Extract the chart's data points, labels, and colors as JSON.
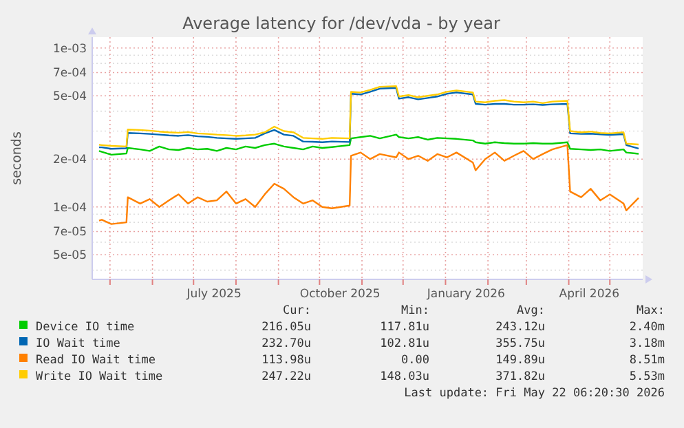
{
  "chart_data": {
    "type": "line",
    "title": "Average latency for /dev/vda - by year",
    "ylabel": "seconds",
    "log": true,
    "grid": true,
    "legend": "bottom",
    "xlim": [
      "2025-04-18",
      "2026-05-25"
    ],
    "xticks": [
      {
        "value": "2025-05-01",
        "label": null
      },
      {
        "value": "2025-06-01",
        "label": null
      },
      {
        "value": "2025-07-01",
        "label": null
      },
      {
        "value": "2025-07-16",
        "label": "July 2025"
      },
      {
        "value": "2025-08-01",
        "label": null
      },
      {
        "value": "2025-09-01",
        "label": null
      },
      {
        "value": "2025-10-01",
        "label": null
      },
      {
        "value": "2025-10-16",
        "label": "October 2025"
      },
      {
        "value": "2025-11-01",
        "label": null
      },
      {
        "value": "2025-12-01",
        "label": null
      },
      {
        "value": "2026-01-01",
        "label": null
      },
      {
        "value": "2026-01-16",
        "label": "January 2026"
      },
      {
        "value": "2026-02-01",
        "label": null
      },
      {
        "value": "2026-03-01",
        "label": null
      },
      {
        "value": "2026-04-01",
        "label": null
      },
      {
        "value": "2026-04-16",
        "label": "April 2026"
      },
      {
        "value": "2026-05-01",
        "label": null
      }
    ],
    "ylim": [
      3.5e-05,
      0.00117
    ],
    "yticks": [
      {
        "value": 4e-05,
        "label": null
      },
      {
        "value": 5e-05,
        "label": "5e-05"
      },
      {
        "value": 6e-05,
        "label": null
      },
      {
        "value": 7e-05,
        "label": "7e-05"
      },
      {
        "value": 8e-05,
        "label": null
      },
      {
        "value": 9e-05,
        "label": null
      },
      {
        "value": 0.0001,
        "label": "1e-04"
      },
      {
        "value": 0.0002,
        "label": "2e-04"
      },
      {
        "value": 0.0003,
        "label": null
      },
      {
        "value": 0.0004,
        "label": null
      },
      {
        "value": 0.0005,
        "label": "5e-04"
      },
      {
        "value": 0.0006,
        "label": null
      },
      {
        "value": 0.0007,
        "label": "7e-04"
      },
      {
        "value": 0.0008,
        "label": null
      },
      {
        "value": 0.0009,
        "label": null
      },
      {
        "value": 0.001,
        "label": "1e-03"
      }
    ],
    "x": [
      "2025-04-23",
      "2025-04-25",
      "2025-05-02",
      "2025-05-13",
      "2025-05-14",
      "2025-05-23",
      "2025-05-30",
      "2025-06-06",
      "2025-06-13",
      "2025-06-20",
      "2025-06-27",
      "2025-07-04",
      "2025-07-11",
      "2025-07-18",
      "2025-07-25",
      "2025-08-01",
      "2025-08-08",
      "2025-08-15",
      "2025-08-22",
      "2025-08-29",
      "2025-09-05",
      "2025-09-12",
      "2025-09-19",
      "2025-09-26",
      "2025-10-03",
      "2025-10-10",
      "2025-10-23",
      "2025-10-24",
      "2025-10-31",
      "2025-11-07",
      "2025-11-14",
      "2025-11-26",
      "2025-11-28",
      "2025-12-05",
      "2025-12-12",
      "2025-12-19",
      "2025-12-26",
      "2026-01-02",
      "2026-01-09",
      "2026-01-21",
      "2026-01-23",
      "2026-01-30",
      "2026-02-06",
      "2026-02-13",
      "2026-02-20",
      "2026-02-27",
      "2026-03-06",
      "2026-03-13",
      "2026-03-20",
      "2026-03-31",
      "2026-04-02",
      "2026-04-10",
      "2026-04-17",
      "2026-04-24",
      "2026-05-01",
      "2026-05-11",
      "2026-05-13",
      "2026-05-22"
    ],
    "series": [
      {
        "name": "Device IO time",
        "color": "#00cc00",
        "values": [
          0.000225,
          0.000222,
          0.000213,
          0.000217,
          0.000235,
          0.00023,
          0.000225,
          0.00024,
          0.00023,
          0.000228,
          0.000235,
          0.00023,
          0.000232,
          0.000225,
          0.000235,
          0.00023,
          0.00024,
          0.000235,
          0.000245,
          0.00025,
          0.00024,
          0.000235,
          0.00023,
          0.00024,
          0.000235,
          0.000238,
          0.000245,
          0.00027,
          0.000275,
          0.00028,
          0.00027,
          0.000285,
          0.000275,
          0.00027,
          0.000275,
          0.000265,
          0.000272,
          0.00027,
          0.000268,
          0.000262,
          0.000255,
          0.00025,
          0.000255,
          0.000252,
          0.00025,
          0.00025,
          0.000252,
          0.00025,
          0.00025,
          0.000255,
          0.000232,
          0.00023,
          0.000228,
          0.00023,
          0.000225,
          0.00023,
          0.00022,
          0.000216
        ]
      },
      {
        "name": "IO Wait time",
        "color": "#0066b3",
        "values": [
          0.000237,
          0.000237,
          0.000232,
          0.000234,
          0.000292,
          0.00029,
          0.000288,
          0.000285,
          0.000282,
          0.00028,
          0.000283,
          0.000278,
          0.000276,
          0.000272,
          0.00027,
          0.000268,
          0.00027,
          0.000272,
          0.00029,
          0.000305,
          0.000285,
          0.00028,
          0.000258,
          0.000257,
          0.000255,
          0.000258,
          0.000256,
          0.000515,
          0.00051,
          0.00053,
          0.000555,
          0.00056,
          0.00048,
          0.00049,
          0.000475,
          0.000485,
          0.000495,
          0.000515,
          0.000525,
          0.00051,
          0.000445,
          0.00044,
          0.000445,
          0.000445,
          0.00044,
          0.00044,
          0.000442,
          0.000438,
          0.000442,
          0.000445,
          0.00029,
          0.000288,
          0.000289,
          0.000286,
          0.000284,
          0.000287,
          0.000245,
          0.000233
        ]
      },
      {
        "name": "Read IO Wait time",
        "color": "#ff8000",
        "values": [
          8.2e-05,
          8.3e-05,
          7.8e-05,
          8e-05,
          0.000115,
          0.000105,
          0.000112,
          0.0001,
          0.00011,
          0.00012,
          0.000105,
          0.000115,
          0.000108,
          0.00011,
          0.000125,
          0.000105,
          0.000112,
          0.0001,
          0.00012,
          0.00014,
          0.00013,
          0.000115,
          0.000105,
          0.00011,
          0.0001,
          9.8e-05,
          0.000102,
          0.00021,
          0.00022,
          0.0002,
          0.000215,
          0.000205,
          0.00022,
          0.0002,
          0.00021,
          0.000195,
          0.000215,
          0.000205,
          0.00022,
          0.00019,
          0.00017,
          0.0002,
          0.00022,
          0.000195,
          0.00021,
          0.000225,
          0.0002,
          0.000215,
          0.00023,
          0.000245,
          0.000125,
          0.000115,
          0.00013,
          0.00011,
          0.00012,
          0.000105,
          9.5e-05,
          0.000114
        ]
      },
      {
        "name": "Write IO Wait time",
        "color": "#ffcc00",
        "values": [
          0.000246,
          0.000245,
          0.000242,
          0.00024,
          0.000307,
          0.000305,
          0.000302,
          0.000298,
          0.000295,
          0.000293,
          0.000296,
          0.00029,
          0.000288,
          0.000285,
          0.000283,
          0.00028,
          0.000282,
          0.000285,
          0.000295,
          0.00032,
          0.0003,
          0.000295,
          0.000272,
          0.00027,
          0.000268,
          0.000272,
          0.00027,
          0.00053,
          0.000525,
          0.000545,
          0.00057,
          0.000575,
          0.000495,
          0.000505,
          0.00049,
          0.0005,
          0.00051,
          0.00053,
          0.00054,
          0.000525,
          0.00046,
          0.000455,
          0.000465,
          0.00047,
          0.00046,
          0.000455,
          0.00046,
          0.00045,
          0.00046,
          0.000465,
          0.0003,
          0.000295,
          0.000298,
          0.000292,
          0.00029,
          0.000295,
          0.00025,
          0.000247
        ]
      }
    ],
    "annotations": [
      "Cur:",
      "Min:",
      "Avg:",
      "Max:",
      "216.05u",
      "117.81u",
      "243.12u",
      "2.40m",
      "232.70u",
      "102.81u",
      "355.75u",
      "3.18m",
      "113.98u",
      "0.00",
      "149.89u",
      "8.51m",
      "247.22u",
      "148.03u",
      "371.82u",
      "5.53m",
      "Last update: Fri May 22 06:20:30 2026"
    ]
  }
}
